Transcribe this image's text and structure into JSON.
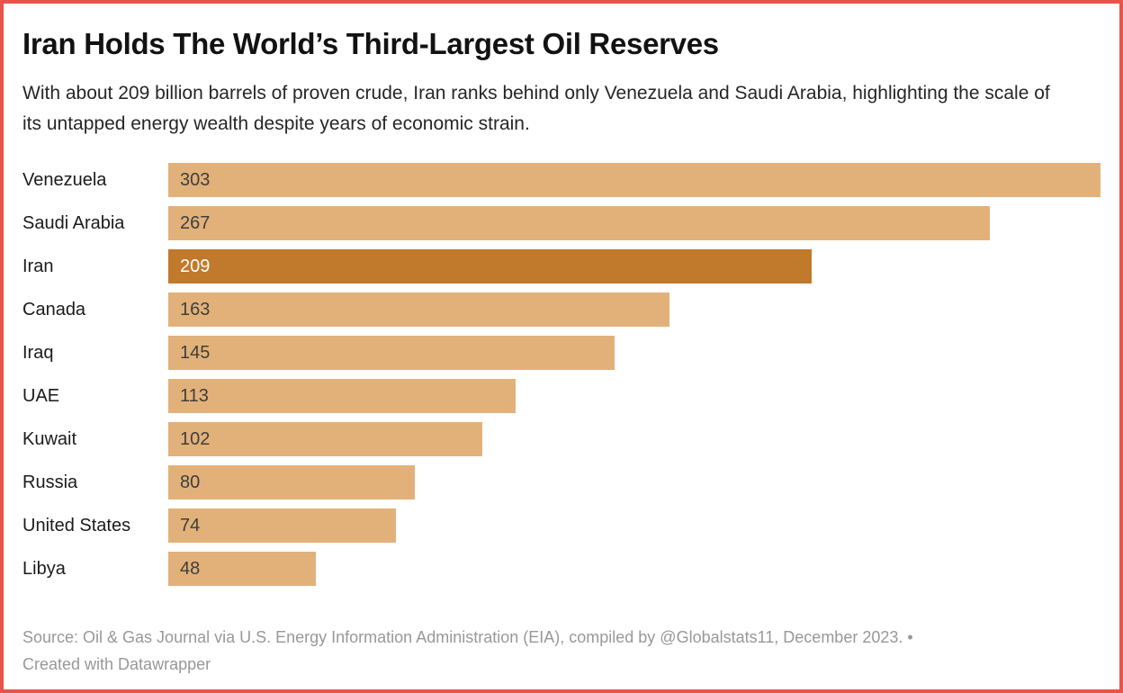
{
  "accent_border_color": "#e8544a",
  "header": {
    "title": "Iran Holds The World’s Third-Largest Oil Reserves",
    "subtitle": "With about 209 billion barrels of proven crude, Iran ranks behind only Venezuela and Saudi Arabia, highlighting the scale of its untapped energy wealth despite years of economic strain."
  },
  "chart_data": {
    "type": "bar",
    "orientation": "horizontal",
    "categories": [
      "Venezuela",
      "Saudi Arabia",
      "Iran",
      "Canada",
      "Iraq",
      "UAE",
      "Kuwait",
      "Russia",
      "United States",
      "Libya"
    ],
    "values": [
      303,
      267,
      209,
      163,
      145,
      113,
      102,
      80,
      74,
      48
    ],
    "value_labels": [
      "303",
      "267",
      "209",
      "163",
      "145",
      "113",
      "102",
      "80",
      "74",
      "48"
    ],
    "highlight_category": "Iran",
    "xlim": [
      0,
      303
    ],
    "grid": false,
    "legend": false,
    "value_label_position": "inside-left",
    "bar_color": "#e2b17a",
    "highlight_color": "#c1792c",
    "value_text_color": "#3e3e3e",
    "highlight_value_text_color": "#ffffff"
  },
  "footer": {
    "source_line": "Source: Oil & Gas Journal via U.S. Energy Information Administration (EIA), compiled by @Globalstats11, December 2023. •",
    "attribution_line": "Created with Datawrapper"
  }
}
